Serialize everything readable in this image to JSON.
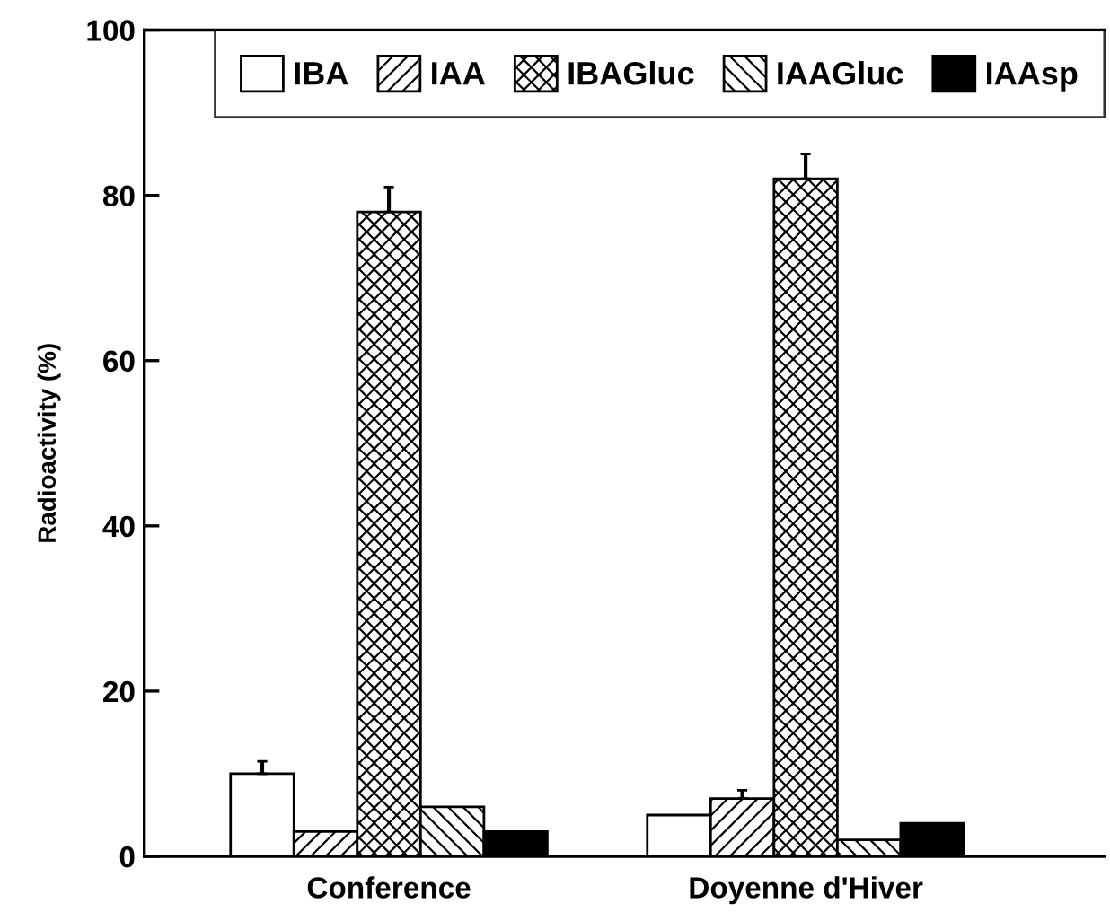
{
  "chart_data": {
    "type": "bar",
    "ylabel": "Radioactivity (%)",
    "categories": [
      "Conference",
      "Doyenne d'Hiver"
    ],
    "series": [
      {
        "name": "IBA",
        "color": "#ffffff",
        "values": [
          10,
          5
        ],
        "errors": [
          [
            10,
            11.5
          ],
          null
        ]
      },
      {
        "name": "IAA",
        "color": "#000000",
        "values": [
          3,
          7
        ],
        "errors": [
          null,
          [
            7,
            8
          ]
        ]
      },
      {
        "name": "IBAGluc",
        "color": "#000000",
        "values": [
          78,
          82
        ],
        "errors": [
          [
            78,
            81
          ],
          [
            82,
            85
          ]
        ]
      },
      {
        "name": "IAAGluc",
        "color": "#000000",
        "values": [
          6,
          2
        ]
      },
      {
        "name": "IAAsp",
        "color": "#000000",
        "values": [
          3,
          4
        ]
      }
    ],
    "ylim": [
      0,
      100
    ],
    "yticks": [
      0,
      20,
      40,
      60,
      80,
      100
    ],
    "grid": false,
    "legend": "top right"
  }
}
